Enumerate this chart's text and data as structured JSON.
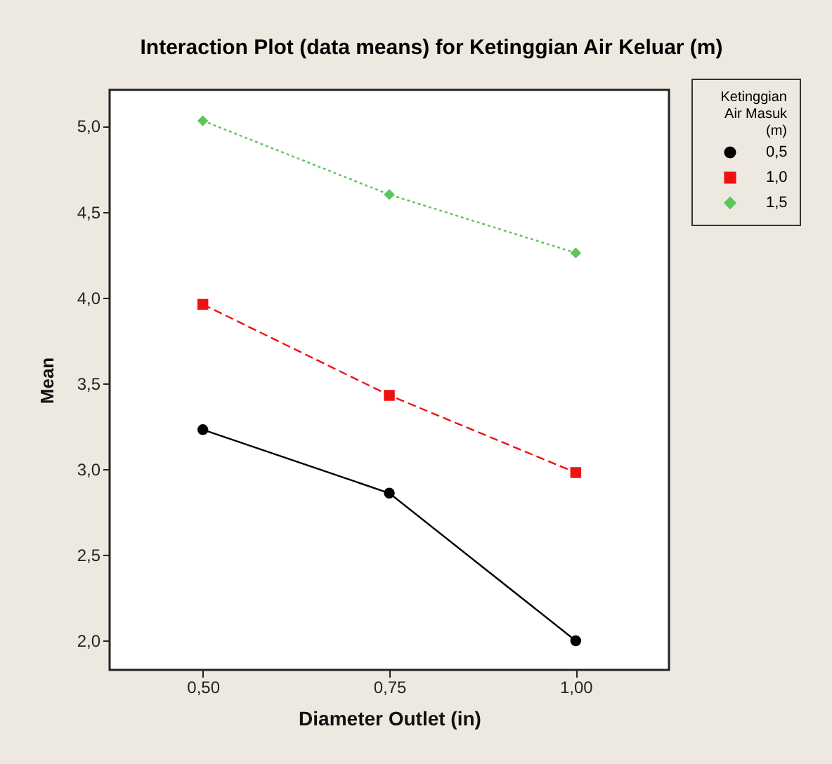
{
  "chart_data": {
    "type": "line",
    "title": "Interaction Plot (data means) for Ketinggian Air Keluar (m)",
    "xlabel": "Diameter Outlet (in)",
    "ylabel": "Mean",
    "legend_title": "Ketinggian Air Masuk (m)",
    "legend": "right",
    "grid": false,
    "categories": [
      "0,50",
      "0,75",
      "1,00"
    ],
    "ylim": [
      1.83,
      5.21
    ],
    "yticks": [
      {
        "value": 2,
        "label": "2,0"
      },
      {
        "value": 2.5,
        "label": "2,5"
      },
      {
        "value": 3,
        "label": "3,0"
      },
      {
        "value": 3.5,
        "label": "3,5"
      },
      {
        "value": 4,
        "label": "4,0"
      },
      {
        "value": 4.5,
        "label": "4,5"
      },
      {
        "value": 5,
        "label": "5,0"
      }
    ],
    "series": [
      {
        "name": "0,5",
        "color": "#000000",
        "marker": "circle",
        "line_style": "solid",
        "values": [
          3.23,
          2.86,
          2.0
        ]
      },
      {
        "name": "1,0",
        "color": "#ee1111",
        "marker": "square",
        "line_style": "dashed",
        "values": [
          3.96,
          3.43,
          2.98
        ]
      },
      {
        "name": "1,5",
        "color": "#5cc55c",
        "marker": "diamond",
        "line_style": "dotted",
        "values": [
          5.03,
          4.6,
          4.26
        ]
      }
    ]
  }
}
